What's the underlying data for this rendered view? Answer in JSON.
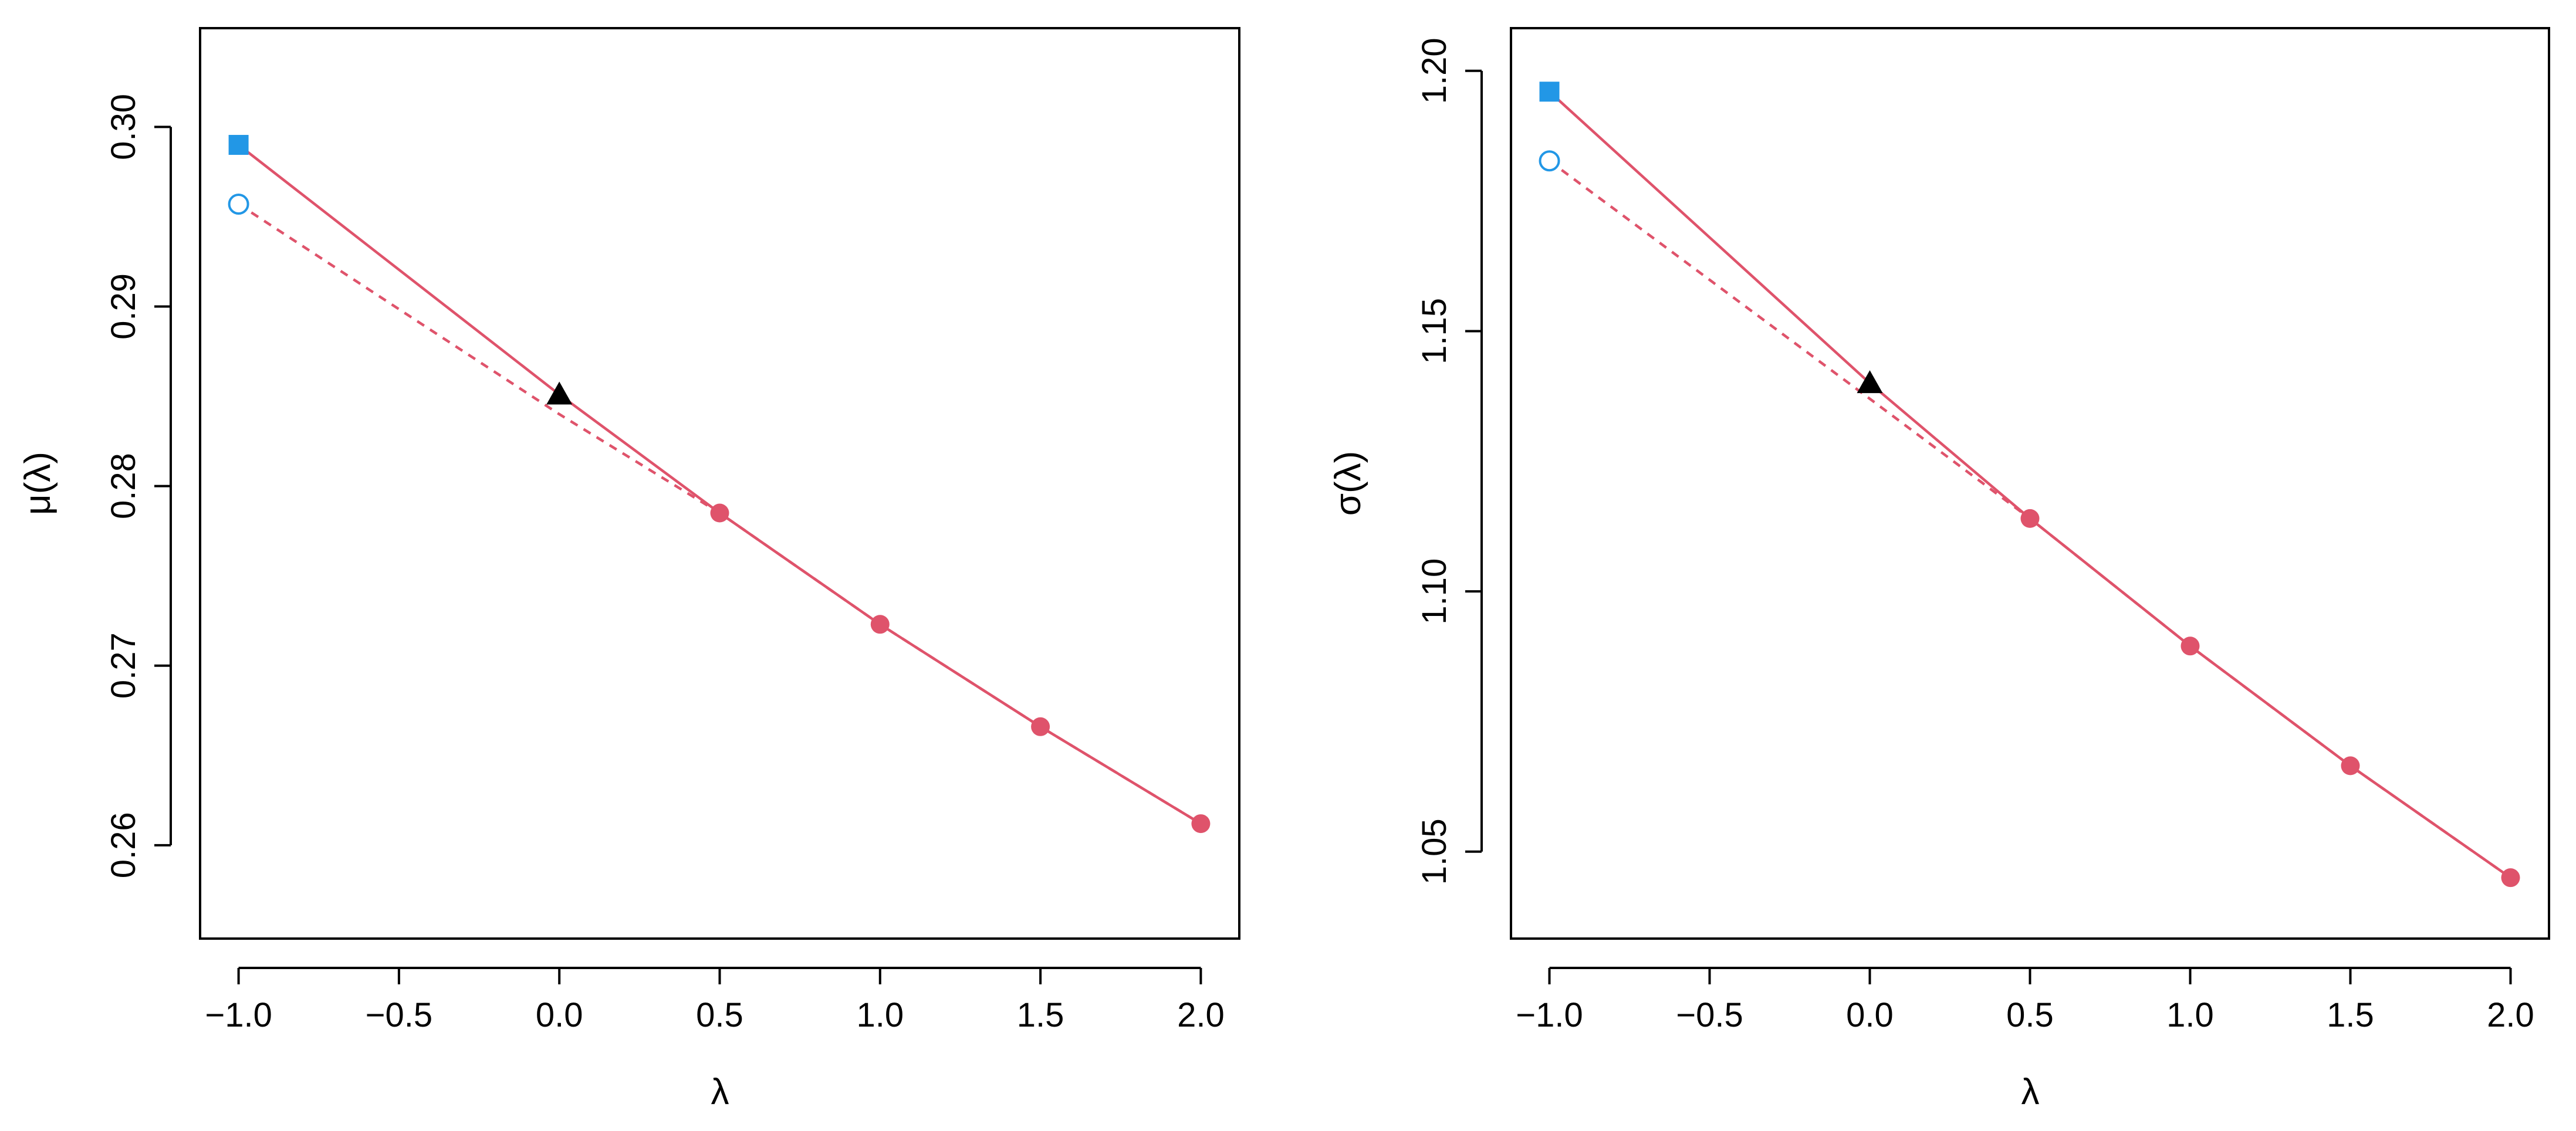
{
  "colors": {
    "series": "#DF536B",
    "square": "#2297E6",
    "circle": "#2297E6",
    "triangle": "#000000",
    "axis": "#000000"
  },
  "chart_data": [
    {
      "type": "line",
      "xlabel": "λ",
      "ylabel": "μ(λ)",
      "xlim": [
        -1.12,
        2.12
      ],
      "ylim": [
        0.2548,
        0.3055
      ],
      "xticks": [
        -1.0,
        -0.5,
        0.0,
        0.5,
        1.0,
        1.5,
        2.0
      ],
      "xtick_labels": [
        "−1.0",
        "−0.5",
        "0.0",
        "0.5",
        "1.0",
        "1.5",
        "2.0"
      ],
      "yticks": [
        0.26,
        0.27,
        0.28,
        0.29,
        0.3
      ],
      "ytick_labels": [
        "0.26",
        "0.27",
        "0.28",
        "0.29",
        "0.30"
      ],
      "grid": false,
      "series": [
        {
          "style": "solid",
          "marker": "none",
          "x": [
            -1.0,
            0.0,
            0.5,
            1.0,
            1.5,
            2.0
          ],
          "y": [
            0.299,
            0.2851,
            0.2785,
            0.2723,
            0.2666,
            0.2612
          ]
        },
        {
          "style": "dashed",
          "marker": "none",
          "x": [
            -1.0,
            0.0,
            0.5,
            1.0,
            1.5,
            2.0
          ],
          "y": [
            0.2957,
            0.284,
            0.2785,
            0.2723,
            0.2666,
            0.2612
          ]
        }
      ],
      "points": {
        "simulated": {
          "marker": "filled-circle",
          "x": [
            0.5,
            1.0,
            1.5,
            2.0
          ],
          "y": [
            0.2785,
            0.2723,
            0.2666,
            0.2612
          ]
        },
        "naive": {
          "marker": "triangle",
          "x": [
            0.0
          ],
          "y": [
            0.2851
          ]
        },
        "extrapolated_solid": {
          "marker": "filled-square",
          "x": [
            -1.0
          ],
          "y": [
            0.299
          ]
        },
        "extrapolated_dashed": {
          "marker": "open-circle",
          "x": [
            -1.0
          ],
          "y": [
            0.2957
          ]
        }
      }
    },
    {
      "type": "line",
      "xlabel": "λ",
      "ylabel": "σ(λ)",
      "xlim": [
        -1.12,
        2.12
      ],
      "ylim": [
        1.0333,
        1.2082
      ],
      "xticks": [
        -1.0,
        -0.5,
        0.0,
        0.5,
        1.0,
        1.5,
        2.0
      ],
      "xtick_labels": [
        "−1.0",
        "−0.5",
        "0.0",
        "0.5",
        "1.0",
        "1.5",
        "2.0"
      ],
      "yticks": [
        1.05,
        1.1,
        1.15,
        1.2
      ],
      "ytick_labels": [
        "1.05",
        "1.10",
        "1.15",
        "1.20"
      ],
      "grid": false,
      "series": [
        {
          "style": "solid",
          "marker": "none",
          "x": [
            -1.0,
            0.0,
            0.5,
            1.0,
            1.5,
            2.0
          ],
          "y": [
            1.196,
            1.14,
            1.114,
            1.0895,
            1.0665,
            1.045
          ]
        },
        {
          "style": "dashed",
          "marker": "none",
          "x": [
            -1.0,
            0.0,
            0.5,
            1.0,
            1.5,
            2.0
          ],
          "y": [
            1.1827,
            1.137,
            1.114,
            1.0895,
            1.0665,
            1.045
          ]
        }
      ],
      "points": {
        "simulated": {
          "marker": "filled-circle",
          "x": [
            0.5,
            1.0,
            1.5,
            2.0
          ],
          "y": [
            1.114,
            1.0895,
            1.0665,
            1.045
          ]
        },
        "naive": {
          "marker": "triangle",
          "x": [
            0.0
          ],
          "y": [
            1.14
          ]
        },
        "extrapolated_solid": {
          "marker": "filled-square",
          "x": [
            -1.0
          ],
          "y": [
            1.196
          ]
        },
        "extrapolated_dashed": {
          "marker": "open-circle",
          "x": [
            -1.0
          ],
          "y": [
            1.1827
          ]
        }
      }
    }
  ]
}
